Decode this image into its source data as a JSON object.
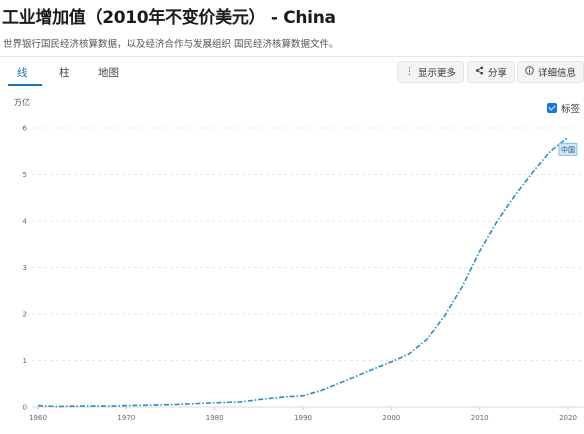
{
  "header": {
    "title": "工业增加值（2010年不变价美元） - China",
    "subtitle": "世界银行国民经济核算数据，以及经济合作与发展组织 国民经济核算数据文件。"
  },
  "tabs": [
    {
      "label": "线",
      "active": true
    },
    {
      "label": "柱",
      "active": false
    },
    {
      "label": "地图",
      "active": false
    }
  ],
  "actions": {
    "more": "显示更多",
    "share": "分享",
    "details": "详细信息"
  },
  "legend": {
    "label": "标签",
    "checked": true
  },
  "colors": {
    "series": "#2a8dc4",
    "accent": "#1a73b8"
  },
  "chart_data": {
    "type": "line",
    "unit_label": "万亿",
    "title": "",
    "xlabel": "",
    "ylabel": "",
    "xlim": [
      1960,
      2020
    ],
    "ylim": [
      0,
      6
    ],
    "x_ticks": [
      1960,
      1970,
      1980,
      1990,
      2000,
      2010,
      2020
    ],
    "y_ticks": [
      0,
      1,
      2,
      3,
      4,
      5,
      6
    ],
    "grid": true,
    "series": [
      {
        "name": "中国",
        "x": [
          1960,
          1962,
          1965,
          1968,
          1970,
          1975,
          1980,
          1983,
          1985,
          1988,
          1990,
          1992,
          1995,
          1998,
          2000,
          2002,
          2004,
          2006,
          2008,
          2010,
          2012,
          2014,
          2016,
          2018,
          2020
        ],
        "values": [
          0.03,
          0.01,
          0.02,
          0.02,
          0.03,
          0.05,
          0.09,
          0.11,
          0.16,
          0.22,
          0.24,
          0.35,
          0.58,
          0.82,
          0.97,
          1.14,
          1.45,
          1.95,
          2.58,
          3.35,
          4.0,
          4.55,
          5.05,
          5.5,
          5.8
        ]
      }
    ]
  }
}
